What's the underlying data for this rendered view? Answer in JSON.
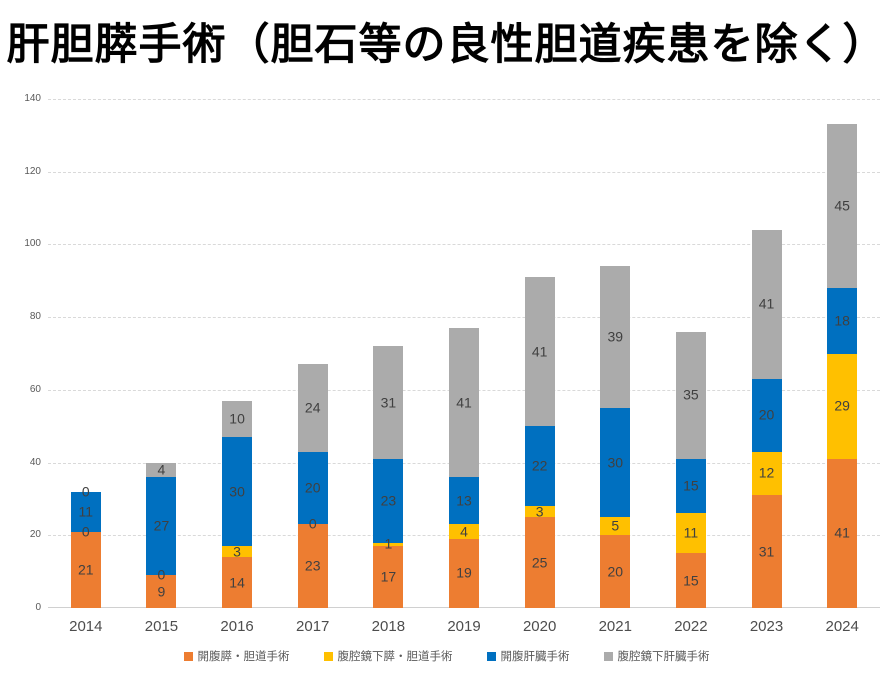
{
  "title": "肝胆膵手術（胆石等の良性胆道疾患を除く）",
  "colors": {
    "orange": "#ED7D31",
    "gold": "#FFC000",
    "blue": "#0070C0",
    "gray": "#ABABAB",
    "gridline": "#D9D9D9",
    "value_label": "#404040",
    "tick_label": "#595959"
  },
  "chart_data": {
    "type": "bar",
    "stacked": true,
    "title": "肝胆膵手術（胆石等の良性胆道疾患を除く）",
    "categories": [
      "2014",
      "2015",
      "2016",
      "2017",
      "2018",
      "2019",
      "2020",
      "2021",
      "2022",
      "2023",
      "2024"
    ],
    "series": [
      {
        "name": "開腹膵・胆道手術",
        "color_key": "orange",
        "pattern": "solid",
        "values": [
          21,
          9,
          14,
          23,
          17,
          19,
          25,
          20,
          15,
          31,
          41
        ]
      },
      {
        "name": "腹腔鏡下膵・胆道手術",
        "color_key": "gold",
        "pattern": "solid",
        "values": [
          0,
          0,
          3,
          0,
          1,
          4,
          3,
          5,
          11,
          12,
          29
        ]
      },
      {
        "name": "開腹肝臓手術",
        "color_key": "blue",
        "pattern": "solid",
        "values": [
          11,
          27,
          30,
          20,
          23,
          13,
          22,
          30,
          15,
          20,
          18
        ]
      },
      {
        "name": "腹腔鏡下肝臓手術",
        "color_key": "gray",
        "pattern": "dots",
        "values": [
          0,
          4,
          10,
          24,
          31,
          41,
          41,
          39,
          35,
          41,
          45
        ]
      }
    ],
    "totals": [
      32,
      40,
      57,
      67,
      72,
      77,
      91,
      94,
      76,
      104,
      133
    ],
    "xlabel": "",
    "ylabel": "",
    "ylim": [
      0,
      140
    ],
    "ytick_step": 20,
    "yticks": [
      0,
      20,
      40,
      60,
      80,
      100,
      120,
      140
    ],
    "grid": true,
    "gridline_style": "dashed",
    "data_labels": true,
    "legend_position": "bottom"
  }
}
